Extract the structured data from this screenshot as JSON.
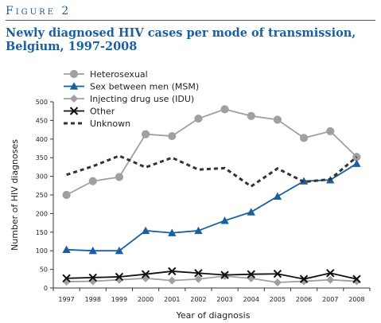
{
  "figure_label": "Figure 2",
  "title": "Newly diagnosed HIV cases per mode of transmission, Belgium, 1997-2008",
  "chart_data": {
    "type": "line",
    "xlabel": "Year of diagnosis",
    "ylabel": "Number of HIV diagnoses",
    "ylim": [
      0,
      500
    ],
    "yticks": [
      0,
      50,
      100,
      150,
      200,
      250,
      300,
      350,
      400,
      450,
      500
    ],
    "x": [
      "1997",
      "1998",
      "1999",
      "2000",
      "2001",
      "2002",
      "2003",
      "2004",
      "2005",
      "2006",
      "2007",
      "2008"
    ],
    "grid": false,
    "legend_position": "top-left",
    "series": [
      {
        "name": "Heterosexual",
        "color": "#a0a0a0",
        "marker": "circle",
        "line": "solid",
        "values": [
          250,
          287,
          298,
          413,
          408,
          455,
          480,
          462,
          452,
          403,
          421,
          352
        ]
      },
      {
        "name": "Sex between men (MSM)",
        "color": "#1a5fa0",
        "marker": "triangle",
        "line": "solid",
        "values": [
          103,
          100,
          100,
          154,
          148,
          154,
          181,
          204,
          246,
          287,
          290,
          334
        ]
      },
      {
        "name": "Injecting drug use (IDU)",
        "color": "#a0a0a0",
        "marker": "diamond",
        "line": "solid",
        "values": [
          17,
          18,
          22,
          26,
          20,
          24,
          32,
          26,
          15,
          18,
          22,
          18
        ]
      },
      {
        "name": "Other",
        "color": "#111111",
        "marker": "x",
        "line": "solid",
        "values": [
          26,
          28,
          30,
          37,
          45,
          40,
          35,
          37,
          38,
          24,
          40,
          24
        ]
      },
      {
        "name": "Unknown",
        "color": "#333333",
        "marker": "none",
        "line": "dotted",
        "values": [
          304,
          327,
          355,
          324,
          350,
          318,
          322,
          273,
          321,
          285,
          292,
          352
        ]
      }
    ]
  }
}
